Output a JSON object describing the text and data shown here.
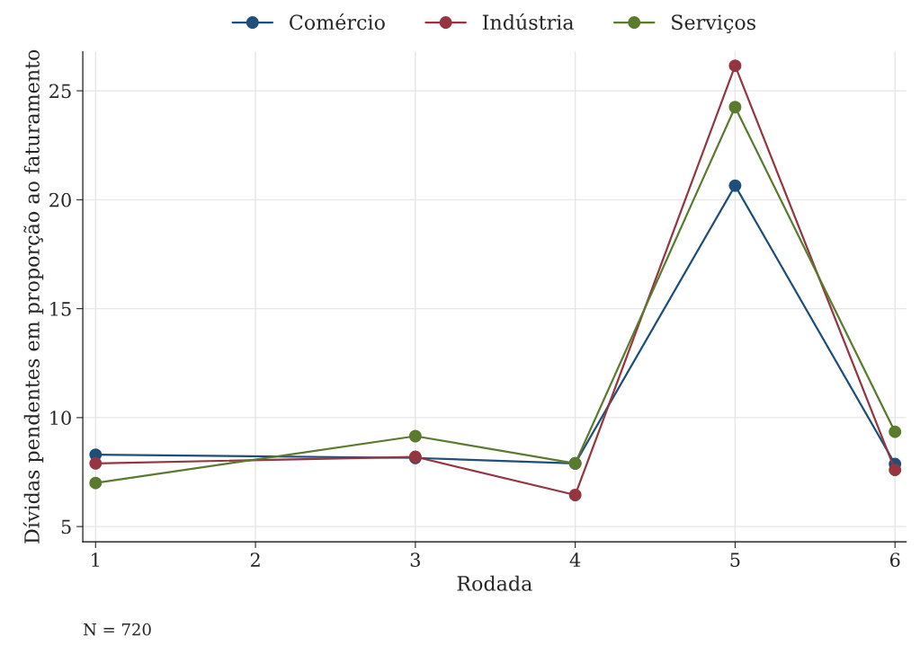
{
  "chart_data": {
    "type": "line",
    "xlabel": "Rodada",
    "ylabel": "Dívidas pendentes em proporção ao faturamento",
    "x": [
      1,
      3,
      4,
      5,
      6
    ],
    "series": [
      {
        "name": "Comércio",
        "color": "#1f4e79",
        "values": [
          8.3,
          8.15,
          7.9,
          20.65,
          7.87
        ]
      },
      {
        "name": "Indústria",
        "color": "#943540",
        "values": [
          7.9,
          8.2,
          6.45,
          26.15,
          7.6
        ]
      },
      {
        "name": "Serviços",
        "color": "#5a7a2e",
        "values": [
          7.0,
          9.15,
          7.9,
          24.25,
          9.35
        ]
      }
    ],
    "xlim": [
      0.92,
      6.07
    ],
    "xticks": [
      1,
      2,
      3,
      4,
      5,
      6
    ],
    "ylim": [
      4.3,
      26.8
    ],
    "yticks": [
      5,
      10,
      15,
      20,
      25
    ],
    "grid": true,
    "legend": "top",
    "marker": "circle",
    "line_style": "solid",
    "annotations": [
      "N = 720"
    ]
  }
}
